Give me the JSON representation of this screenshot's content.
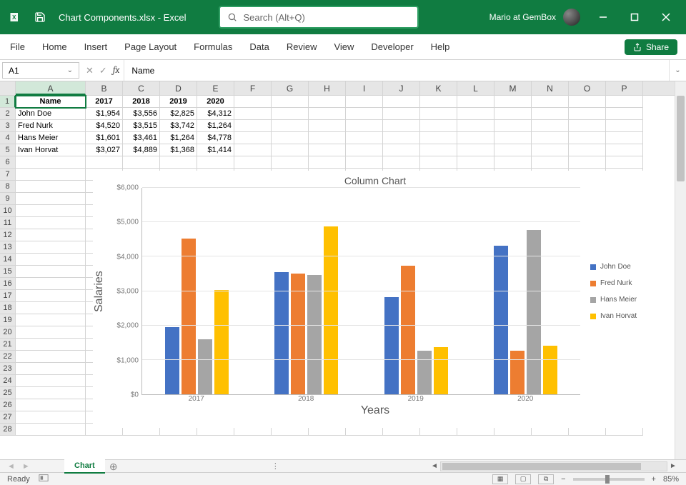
{
  "titlebar": {
    "filename": "Chart Components.xlsx  -  Excel",
    "search_placeholder": "Search (Alt+Q)",
    "user_name": "Mario at GemBox"
  },
  "ribbon": {
    "tabs": [
      "File",
      "Home",
      "Insert",
      "Page Layout",
      "Formulas",
      "Data",
      "Review",
      "View",
      "Developer",
      "Help"
    ],
    "share_label": "Share"
  },
  "formula_bar": {
    "cell_ref": "A1",
    "formula_value": "Name"
  },
  "columns": [
    "A",
    "B",
    "C",
    "D",
    "E",
    "F",
    "G",
    "H",
    "I",
    "J",
    "K",
    "L",
    "M",
    "N",
    "O",
    "P"
  ],
  "table": {
    "header_row": [
      "Name",
      "2017",
      "2018",
      "2019",
      "2020"
    ],
    "rows": [
      [
        "John Doe",
        "$1,954",
        "$3,556",
        "$2,825",
        "$4,312"
      ],
      [
        "Fred Nurk",
        "$4,520",
        "$3,515",
        "$3,742",
        "$1,264"
      ],
      [
        "Hans Meier",
        "$1,601",
        "$3,461",
        "$1,264",
        "$4,778"
      ],
      [
        "Ivan Horvat",
        "$3,027",
        "$4,889",
        "$1,368",
        "$1,414"
      ]
    ]
  },
  "chart": {
    "title": "Column Chart",
    "y_axis_title": "Salaries",
    "x_axis_title": "Years",
    "ylim_max": 6000,
    "y_ticks": [
      "$0",
      "$1,000",
      "$2,000",
      "$3,000",
      "$4,000",
      "$5,000",
      "$6,000"
    ],
    "categories": [
      "2017",
      "2018",
      "2019",
      "2020"
    ],
    "series": [
      {
        "name": "John Doe",
        "color": "#4472c4",
        "values": [
          1954,
          3556,
          2825,
          4312
        ]
      },
      {
        "name": "Fred Nurk",
        "color": "#ed7d31",
        "values": [
          4520,
          3515,
          3742,
          1264
        ]
      },
      {
        "name": "Hans Meier",
        "color": "#a5a5a5",
        "values": [
          1601,
          3461,
          1264,
          4778
        ]
      },
      {
        "name": "Ivan Horvat",
        "color": "#ffc000",
        "values": [
          3027,
          4889,
          1368,
          1414
        ]
      }
    ],
    "grid_color": "#e4e4e4",
    "background_color": "#ffffff"
  },
  "sheet_tabs": {
    "active": "Chart"
  },
  "statusbar": {
    "status": "Ready",
    "zoom": "85%"
  }
}
